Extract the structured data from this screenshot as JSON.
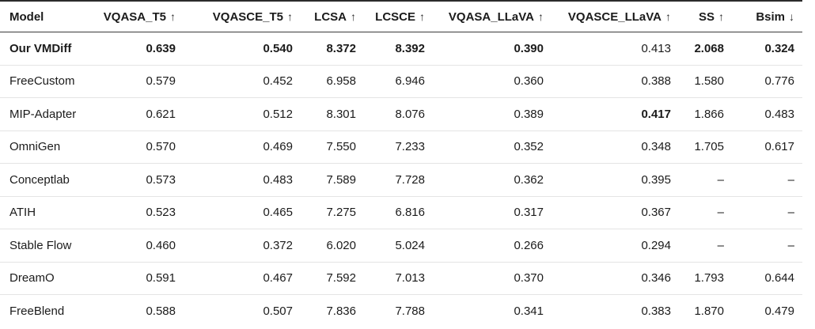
{
  "chart_data": {
    "type": "table",
    "columns": [
      {
        "key": "model",
        "label": "Model",
        "arrow": ""
      },
      {
        "key": "vqasa-t5",
        "label": "VQASA_T5",
        "arrow": "↑"
      },
      {
        "key": "vqasce-t5",
        "label": "VQASCE_T5",
        "arrow": "↑"
      },
      {
        "key": "lcsa",
        "label": "LCSA",
        "arrow": "↑"
      },
      {
        "key": "lcsce",
        "label": "LCSCE",
        "arrow": "↑"
      },
      {
        "key": "vqasa-llava",
        "label": "VQASA_LLaVA",
        "arrow": "↑"
      },
      {
        "key": "vqasce-llava",
        "label": "VQASCE_LLaVA",
        "arrow": "↑"
      },
      {
        "key": "ss",
        "label": "SS",
        "arrow": "↑"
      },
      {
        "key": "bsim",
        "label": "Bsim",
        "arrow": "↓"
      }
    ],
    "rows": [
      {
        "model": "Our VMDiff",
        "model_bold": true,
        "values": [
          "0.639",
          "0.540",
          "8.372",
          "8.392",
          "0.390",
          "0.413",
          "2.068",
          "0.324"
        ],
        "bold": [
          true,
          true,
          true,
          true,
          true,
          false,
          true,
          true
        ]
      },
      {
        "model": "FreeCustom",
        "model_bold": false,
        "values": [
          "0.579",
          "0.452",
          "6.958",
          "6.946",
          "0.360",
          "0.388",
          "1.580",
          "0.776"
        ],
        "bold": [
          false,
          false,
          false,
          false,
          false,
          false,
          false,
          false
        ]
      },
      {
        "model": "MIP-Adapter",
        "model_bold": false,
        "values": [
          "0.621",
          "0.512",
          "8.301",
          "8.076",
          "0.389",
          "0.417",
          "1.866",
          "0.483"
        ],
        "bold": [
          false,
          false,
          false,
          false,
          false,
          true,
          false,
          false
        ]
      },
      {
        "model": "OmniGen",
        "model_bold": false,
        "values": [
          "0.570",
          "0.469",
          "7.550",
          "7.233",
          "0.352",
          "0.348",
          "1.705",
          "0.617"
        ],
        "bold": [
          false,
          false,
          false,
          false,
          false,
          false,
          false,
          false
        ]
      },
      {
        "model": "Conceptlab",
        "model_bold": false,
        "values": [
          "0.573",
          "0.483",
          "7.589",
          "7.728",
          "0.362",
          "0.395",
          "–",
          "–"
        ],
        "bold": [
          false,
          false,
          false,
          false,
          false,
          false,
          false,
          false
        ]
      },
      {
        "model": "ATIH",
        "model_bold": false,
        "values": [
          "0.523",
          "0.465",
          "7.275",
          "6.816",
          "0.317",
          "0.367",
          "–",
          "–"
        ],
        "bold": [
          false,
          false,
          false,
          false,
          false,
          false,
          false,
          false
        ]
      },
      {
        "model": "Stable Flow",
        "model_bold": false,
        "values": [
          "0.460",
          "0.372",
          "6.020",
          "5.024",
          "0.266",
          "0.294",
          "–",
          "–"
        ],
        "bold": [
          false,
          false,
          false,
          false,
          false,
          false,
          false,
          false
        ]
      },
      {
        "model": "DreamO",
        "model_bold": false,
        "values": [
          "0.591",
          "0.467",
          "7.592",
          "7.013",
          "0.370",
          "0.346",
          "1.793",
          "0.644"
        ],
        "bold": [
          false,
          false,
          false,
          false,
          false,
          false,
          false,
          false
        ]
      },
      {
        "model": "FreeBlend",
        "model_bold": false,
        "values": [
          "0.588",
          "0.507",
          "7.836",
          "7.788",
          "0.341",
          "0.383",
          "1.870",
          "0.479"
        ],
        "bold": [
          false,
          false,
          false,
          false,
          false,
          false,
          false,
          false
        ]
      }
    ],
    "colors": {
      "text": "#1b1b1b",
      "header_border": "#2b2b2b",
      "row_separator": "#e4e4e4",
      "background": "#ffffff"
    }
  }
}
